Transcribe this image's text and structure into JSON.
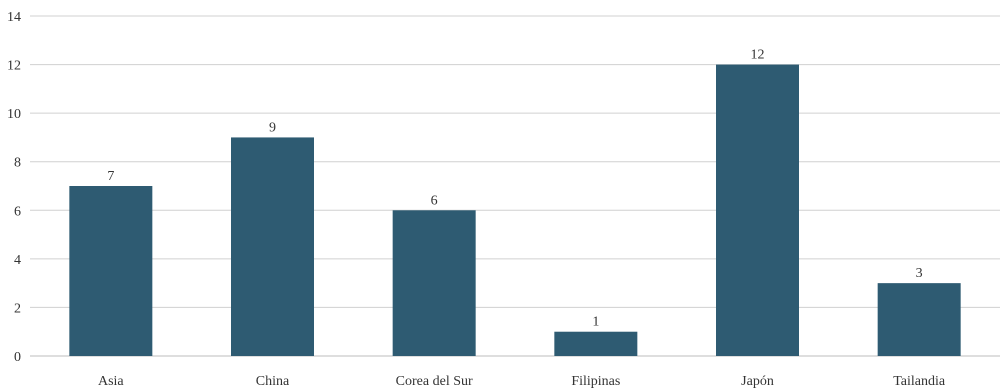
{
  "chart_data": {
    "type": "bar",
    "categories": [
      "Asia",
      "China",
      "Corea del Sur",
      "Filipinas",
      "Japón",
      "Tailandia"
    ],
    "values": [
      7,
      9,
      6,
      1,
      12,
      3
    ],
    "data_labels": [
      "7",
      "9",
      "6",
      "1",
      "12",
      "3"
    ],
    "yticks": [
      "0",
      "2",
      "4",
      "6",
      "8",
      "10",
      "12",
      "14"
    ],
    "ylim": [
      0,
      14
    ],
    "title": "",
    "xlabel": "",
    "ylabel": "",
    "grid": true,
    "legend": "none",
    "bar_color": "#2e5b72"
  }
}
